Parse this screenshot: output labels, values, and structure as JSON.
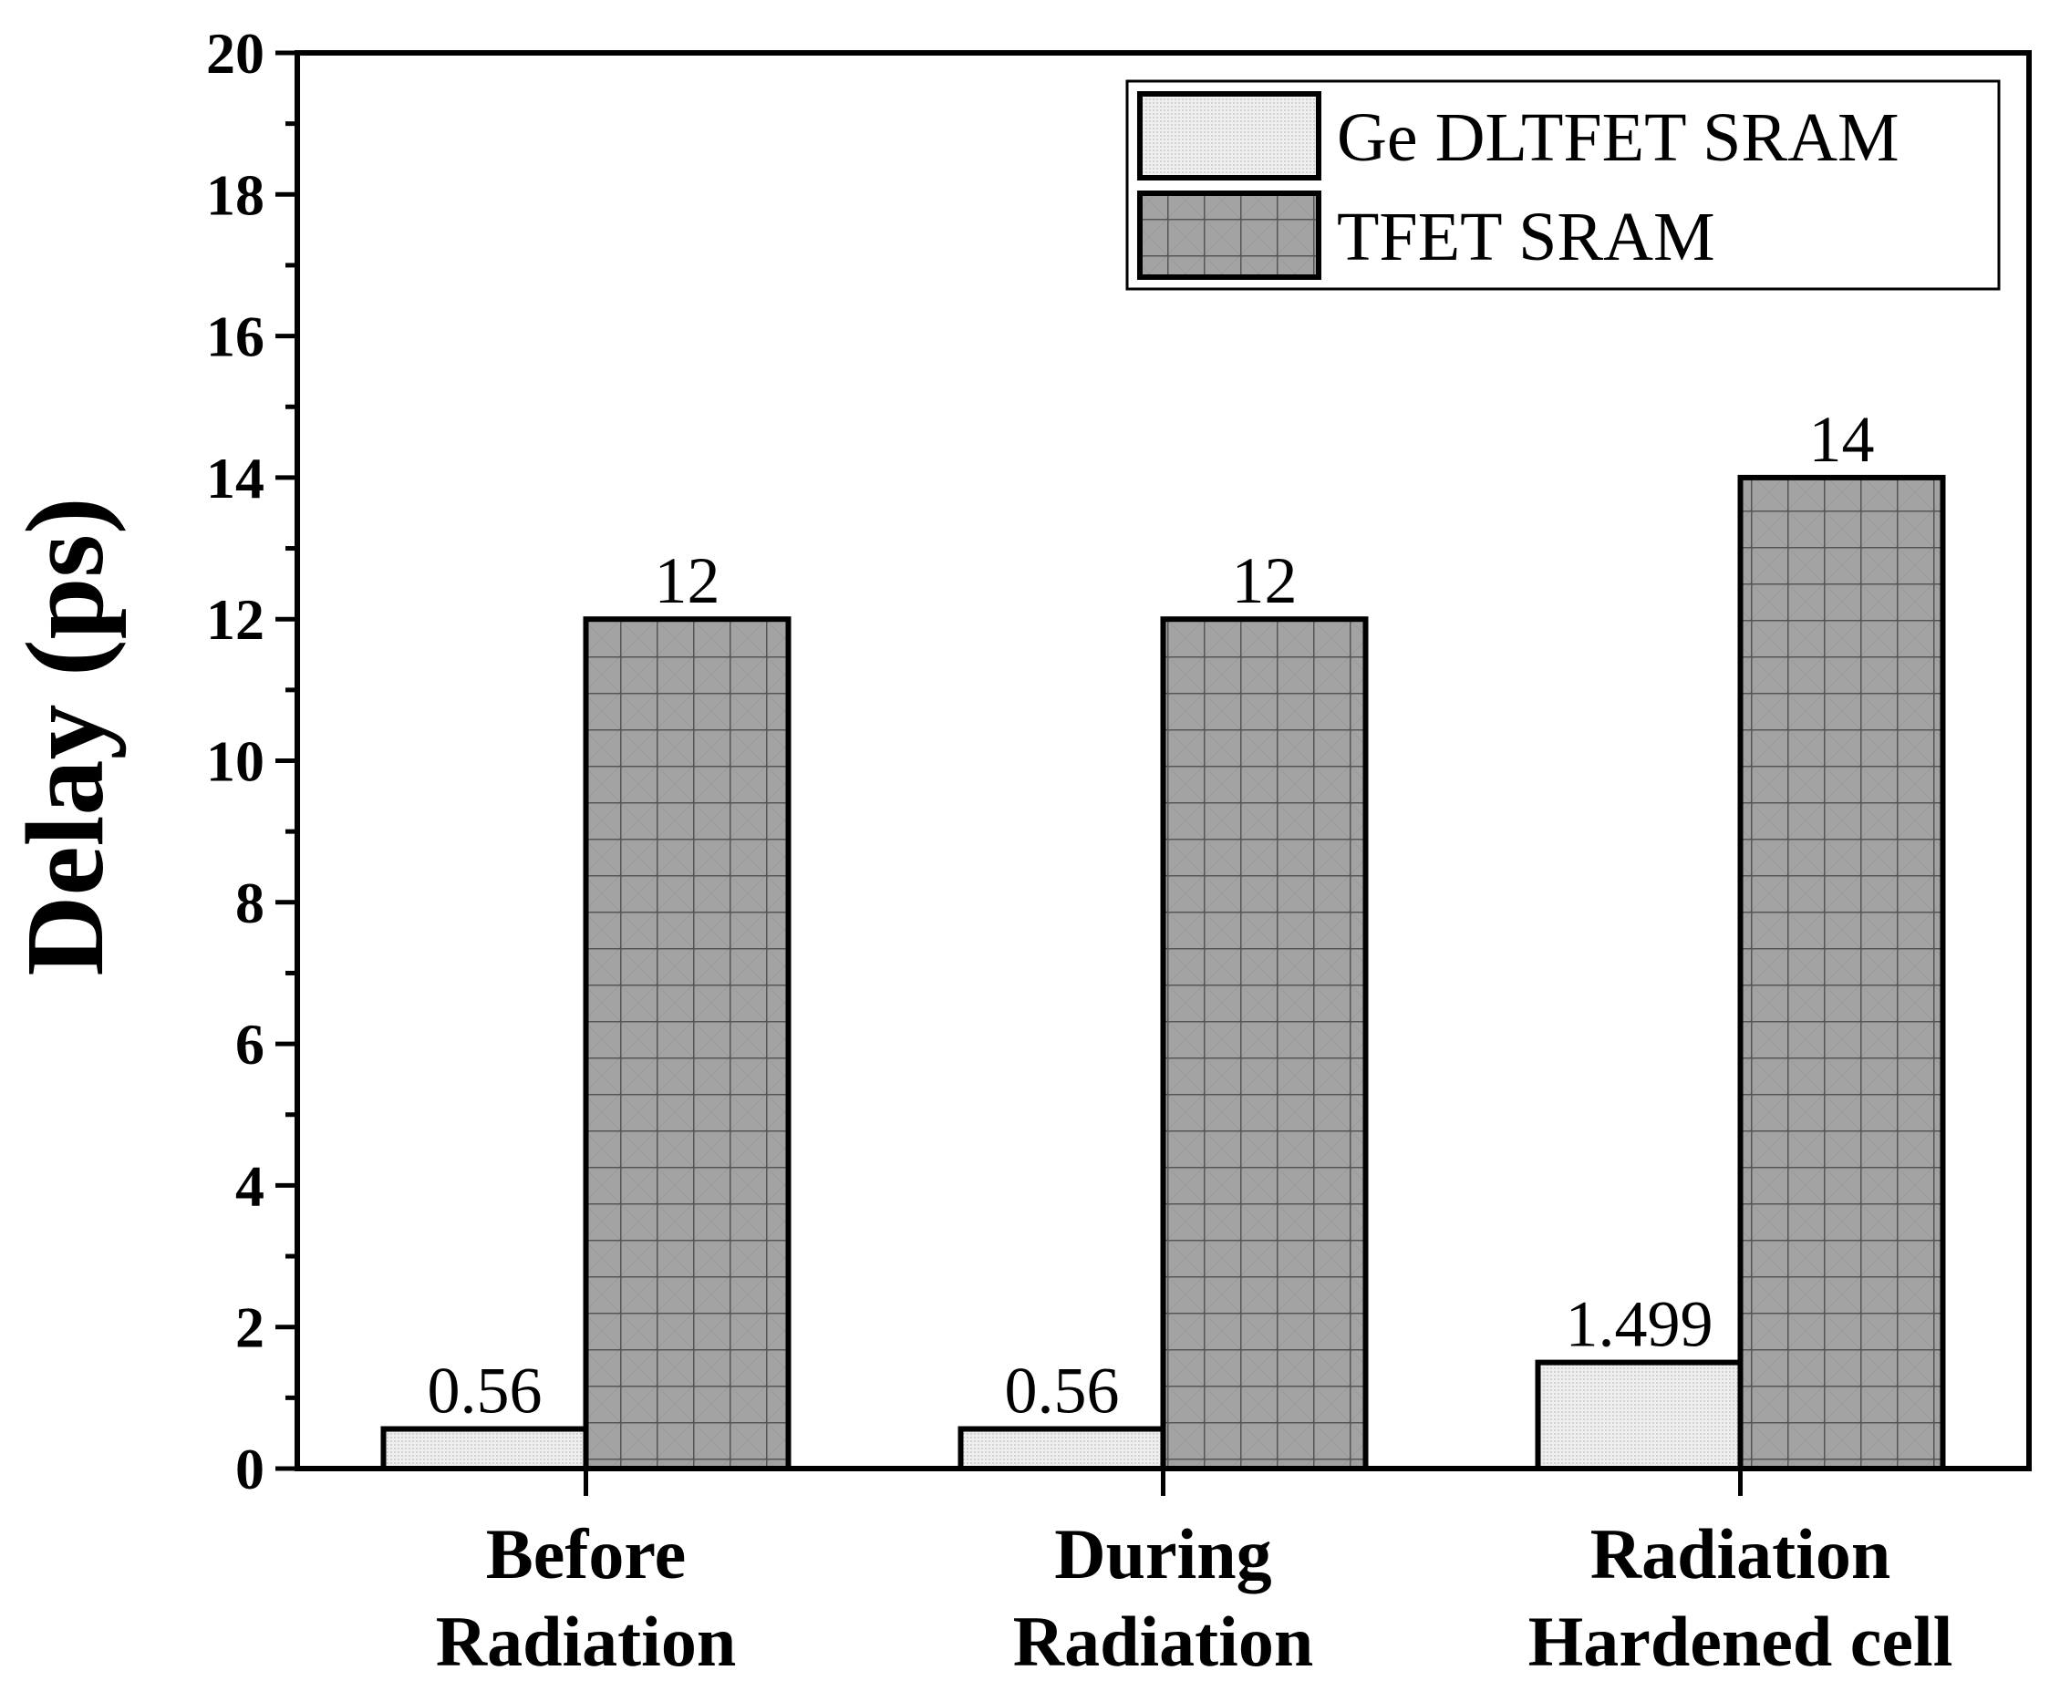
{
  "chart_data": {
    "type": "bar",
    "title": "",
    "xlabel": "",
    "ylabel": "Delay (ps)",
    "ylim": [
      0,
      20
    ],
    "yticks": [
      0,
      2,
      4,
      6,
      8,
      10,
      12,
      14,
      16,
      18,
      20
    ],
    "categories": [
      [
        "Before",
        "Radiation"
      ],
      [
        "During",
        "Radiation"
      ],
      [
        "Radiation",
        "Hardened cell"
      ]
    ],
    "series": [
      {
        "name": "Ge DLTFET SRAM",
        "values": [
          0.56,
          0.56,
          1.499
        ],
        "labels": [
          "0.56",
          "0.56",
          "1.499"
        ]
      },
      {
        "name": "TFET SRAM",
        "values": [
          12,
          12,
          14
        ],
        "labels": [
          "12",
          "12",
          "14"
        ]
      }
    ],
    "legend_position": "top-right",
    "colors": {
      "series0_fill": "#ececec",
      "series1_fill": "#9a9a9a",
      "stroke": "#000000"
    }
  }
}
